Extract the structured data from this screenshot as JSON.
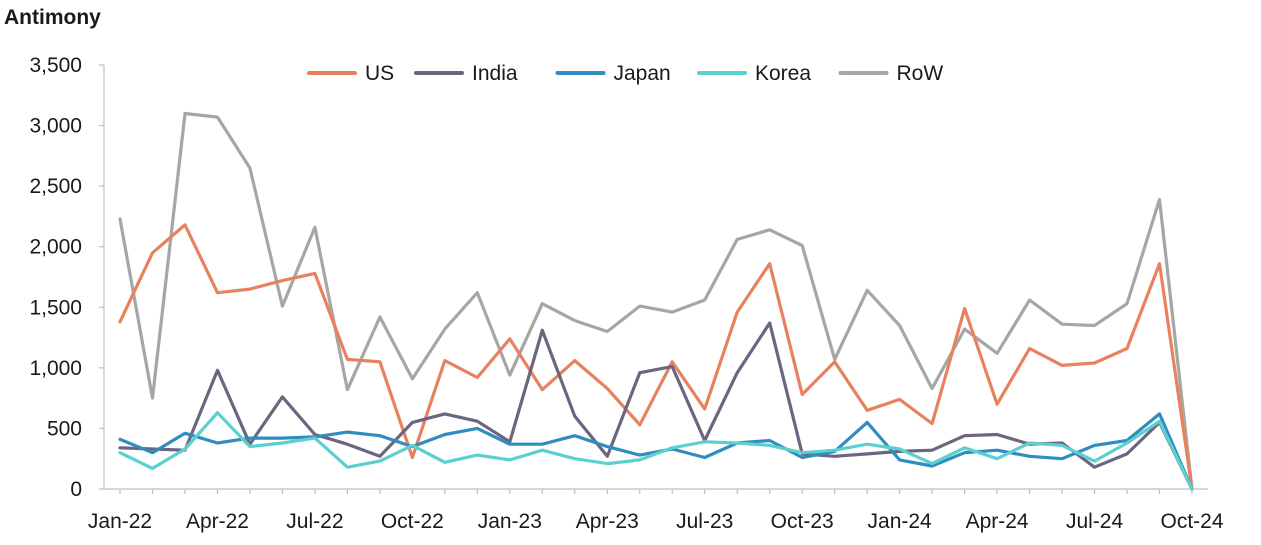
{
  "chart_data": {
    "type": "line",
    "title": "Antimony",
    "xlabel": "",
    "ylabel": "",
    "ylim": [
      0,
      3500
    ],
    "y_ticks": [
      0,
      500,
      1000,
      1500,
      2000,
      2500,
      3000,
      3500
    ],
    "y_tick_labels": [
      "0",
      "500",
      "1,000",
      "1,500",
      "2,000",
      "2,500",
      "3,000",
      "3,500"
    ],
    "x_tick_labels": [
      "Jan-22",
      "Apr-22",
      "Jul-22",
      "Oct-22",
      "Jan-23",
      "Apr-23",
      "Jul-23",
      "Oct-23",
      "Jan-24",
      "Apr-24",
      "Jul-24",
      "Oct-24"
    ],
    "x_tick_every": 3,
    "legend_position": "top-center",
    "grid": false,
    "x": [
      "Jan-22",
      "Feb-22",
      "Mar-22",
      "Apr-22",
      "May-22",
      "Jun-22",
      "Jul-22",
      "Aug-22",
      "Sep-22",
      "Oct-22",
      "Nov-22",
      "Dec-22",
      "Jan-23",
      "Feb-23",
      "Mar-23",
      "Apr-23",
      "May-23",
      "Jun-23",
      "Jul-23",
      "Aug-23",
      "Sep-23",
      "Oct-23",
      "Nov-23",
      "Dec-23",
      "Jan-24",
      "Feb-24",
      "Mar-24",
      "Apr-24",
      "May-24",
      "Jun-24",
      "Jul-24",
      "Aug-24",
      "Sep-24",
      "Oct-24"
    ],
    "series": [
      {
        "name": "US",
        "color": "#e8825e",
        "values": [
          1380,
          1950,
          2180,
          1620,
          1650,
          1720,
          1780,
          1070,
          1050,
          260,
          1060,
          920,
          1240,
          820,
          1060,
          830,
          530,
          1050,
          660,
          1460,
          1860,
          780,
          1050,
          650,
          740,
          540,
          1490,
          700,
          1160,
          1020,
          1040,
          1160,
          1860,
          0
        ]
      },
      {
        "name": "India",
        "color": "#6b6580",
        "values": [
          340,
          330,
          320,
          980,
          370,
          760,
          450,
          370,
          270,
          550,
          620,
          560,
          390,
          1310,
          600,
          270,
          960,
          1010,
          400,
          960,
          1370,
          290,
          270,
          290,
          310,
          320,
          440,
          450,
          370,
          380,
          180,
          290,
          550,
          0
        ]
      },
      {
        "name": "Japan",
        "color": "#2f8dbf",
        "values": [
          410,
          300,
          460,
          380,
          420,
          420,
          430,
          470,
          440,
          350,
          450,
          500,
          370,
          370,
          440,
          350,
          280,
          330,
          260,
          380,
          400,
          260,
          310,
          550,
          240,
          190,
          300,
          320,
          270,
          250,
          360,
          400,
          620,
          0
        ]
      },
      {
        "name": "Korea",
        "color": "#5ccfcf",
        "values": [
          300,
          170,
          330,
          630,
          350,
          380,
          420,
          180,
          230,
          360,
          220,
          280,
          240,
          320,
          250,
          210,
          240,
          340,
          390,
          380,
          360,
          300,
          320,
          370,
          330,
          210,
          340,
          250,
          380,
          360,
          230,
          380,
          560,
          0
        ]
      },
      {
        "name": "RoW",
        "color": "#a6a6a6",
        "values": [
          2230,
          750,
          3100,
          3070,
          2650,
          1510,
          2160,
          820,
          1420,
          910,
          1320,
          1620,
          940,
          1530,
          1390,
          1300,
          1510,
          1460,
          1560,
          2060,
          2140,
          2010,
          1070,
          1640,
          1350,
          830,
          1320,
          1120,
          1560,
          1360,
          1350,
          1530,
          2390,
          0
        ]
      }
    ]
  }
}
